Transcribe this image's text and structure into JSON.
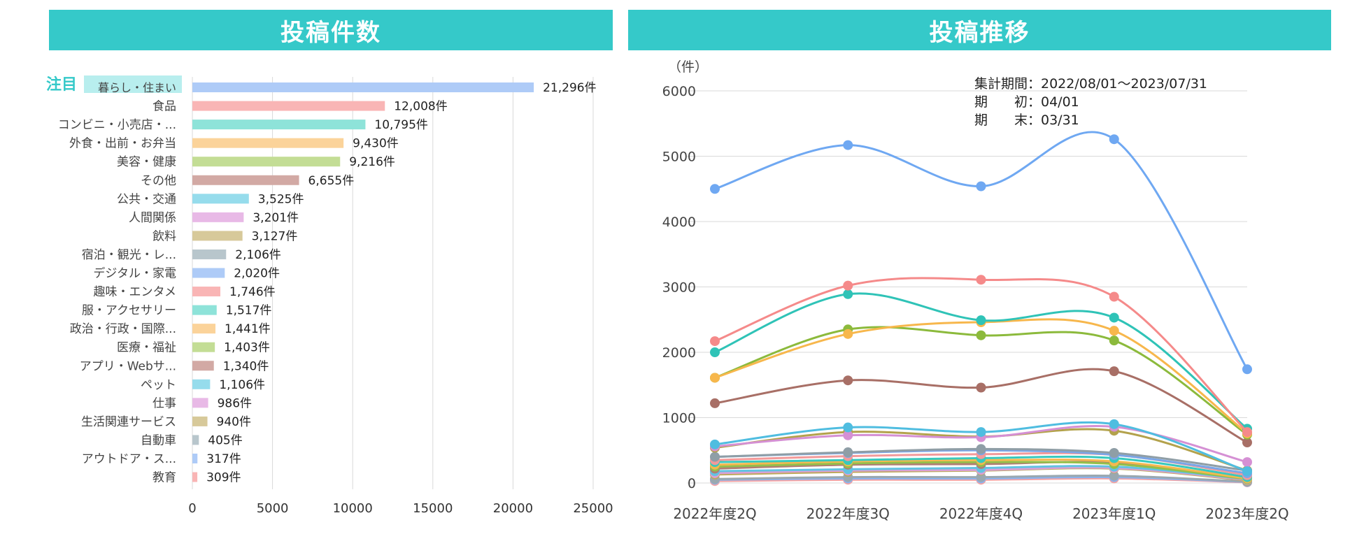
{
  "left_title": "投稿件数",
  "right_title": "投稿推移",
  "focus_label": "注目",
  "colors": {
    "banner": "#35c9c9",
    "focus_bg": "#b8eeee",
    "grid": "#d9d9d9"
  },
  "chart_data": [
    {
      "type": "bar",
      "orientation": "horizontal",
      "title": "投稿件数",
      "categories": [
        "暮らし・住まい",
        "食品",
        "コンビニ・小売店・...",
        "外食・出前・お弁当",
        "美容・健康",
        "その他",
        "公共・交通",
        "人間関係",
        "飲料",
        "宿泊・観光・レ...",
        "デジタル・家電",
        "趣味・エンタメ",
        "服・アクセサリー",
        "政治・行政・国際...",
        "医療・福祉",
        "アプリ・Webサ...",
        "ペット",
        "仕事",
        "生活関連サービス",
        "自動車",
        "アウトドア・ス...",
        "教育"
      ],
      "values": [
        21296,
        12008,
        10795,
        9430,
        9216,
        6655,
        3525,
        3201,
        3127,
        2106,
        2020,
        1746,
        1517,
        1441,
        1403,
        1340,
        1106,
        986,
        940,
        405,
        317,
        309
      ],
      "value_labels": [
        "21,296件",
        "12,008件",
        "10,795件",
        "9,430件",
        "9,216件",
        "6,655件",
        "3,525件",
        "3,201件",
        "3,127件",
        "2,106件",
        "2,020件",
        "1,746件",
        "1,517件",
        "1,441件",
        "1,403件",
        "1,340件",
        "1,106件",
        "986件",
        "940件",
        "405件",
        "317件",
        "309件"
      ],
      "bar_colors": [
        "#aecbf7",
        "#f9b5b5",
        "#8ee3d9",
        "#fbd39a",
        "#c3dd95",
        "#d2a9a4",
        "#96dcec",
        "#e8b9e6",
        "#d7c99a",
        "#b8c6cc",
        "#aecbf7",
        "#f9b5b5",
        "#8ee3d9",
        "#fbd39a",
        "#c3dd95",
        "#d2a9a4",
        "#96dcec",
        "#e8b9e6",
        "#d7c99a",
        "#b8c6cc",
        "#aecbf7",
        "#f9b5b5"
      ],
      "xlim": [
        0,
        25000
      ],
      "xticks": [
        "0",
        "5000",
        "10000",
        "15000",
        "20000",
        "25000"
      ]
    },
    {
      "type": "line",
      "title": "投稿推移",
      "ylabel": "（件）",
      "x": [
        "2022年度2Q",
        "2022年度3Q",
        "2022年度4Q",
        "2023年度1Q",
        "2023年度2Q"
      ],
      "ylim": [
        0,
        6000
      ],
      "yticks": [
        "0",
        "1000",
        "2000",
        "3000",
        "4000",
        "5000",
        "6000"
      ],
      "annotations": [
        "集計期間：2022/08/01～2023/07/31",
        "期　　初：04/01",
        "期　　末：03/31"
      ],
      "series": [
        {
          "name": "暮らし・住まい",
          "color": "#6fa8f2",
          "values": [
            4500,
            5170,
            4540,
            5260,
            1740
          ]
        },
        {
          "name": "食品",
          "color": "#f58a8a",
          "values": [
            2170,
            3020,
            3110,
            2850,
            780
          ]
        },
        {
          "name": "コンビニ・小売店",
          "color": "#2fc3b7",
          "values": [
            2000,
            2890,
            2490,
            2530,
            830
          ]
        },
        {
          "name": "外食・出前・お弁当",
          "color": "#f7b74c",
          "values": [
            1610,
            2280,
            2460,
            2330,
            760
          ]
        },
        {
          "name": "美容・健康",
          "color": "#8cba3c",
          "values": [
            1610,
            2350,
            2260,
            2180,
            740
          ]
        },
        {
          "name": "その他",
          "color": "#a86f66",
          "values": [
            1220,
            1570,
            1460,
            1710,
            620
          ]
        },
        {
          "name": "公共・交通",
          "color": "#4fbde0",
          "values": [
            590,
            850,
            780,
            900,
            180
          ]
        },
        {
          "name": "人間関係",
          "color": "#d590d4",
          "values": [
            560,
            730,
            700,
            860,
            320
          ]
        },
        {
          "name": "飲料",
          "color": "#b3a24c",
          "values": [
            540,
            780,
            710,
            800,
            190
          ]
        },
        {
          "name": "宿泊・観光",
          "color": "#8f9ea6",
          "values": [
            400,
            470,
            520,
            460,
            190
          ]
        },
        {
          "name": "デジタル・家電",
          "color": "#7aa6e8",
          "values": [
            400,
            460,
            500,
            430,
            150
          ]
        },
        {
          "name": "趣味・エンタメ",
          "color": "#f29a9a",
          "values": [
            350,
            410,
            440,
            430,
            120
          ]
        },
        {
          "name": "服・アクセサリー",
          "color": "#38c9bd",
          "values": [
            320,
            350,
            380,
            380,
            90
          ]
        },
        {
          "name": "政治・行政・国際",
          "color": "#f5b84f",
          "values": [
            280,
            330,
            350,
            330,
            70
          ]
        },
        {
          "name": "医療・福祉",
          "color": "#94c04a",
          "values": [
            250,
            300,
            320,
            290,
            60
          ]
        },
        {
          "name": "アプリ・Webサービス",
          "color": "#b07e74",
          "values": [
            220,
            280,
            290,
            310,
            70
          ]
        },
        {
          "name": "ペット",
          "color": "#62c3e2",
          "values": [
            180,
            210,
            230,
            250,
            60
          ]
        },
        {
          "name": "仕事",
          "color": "#d9a0d6",
          "values": [
            150,
            190,
            200,
            230,
            50
          ]
        },
        {
          "name": "生活関連サービス",
          "color": "#bda95a",
          "values": [
            130,
            170,
            190,
            220,
            40
          ]
        },
        {
          "name": "自動車",
          "color": "#9aa8b0",
          "values": [
            60,
            90,
            90,
            110,
            20
          ]
        },
        {
          "name": "アウトドア・スポーツ",
          "color": "#8ab2ee",
          "values": [
            50,
            70,
            70,
            90,
            15
          ]
        },
        {
          "name": "教育",
          "color": "#f5a3a3",
          "values": [
            30,
            50,
            50,
            70,
            10
          ]
        }
      ]
    }
  ]
}
